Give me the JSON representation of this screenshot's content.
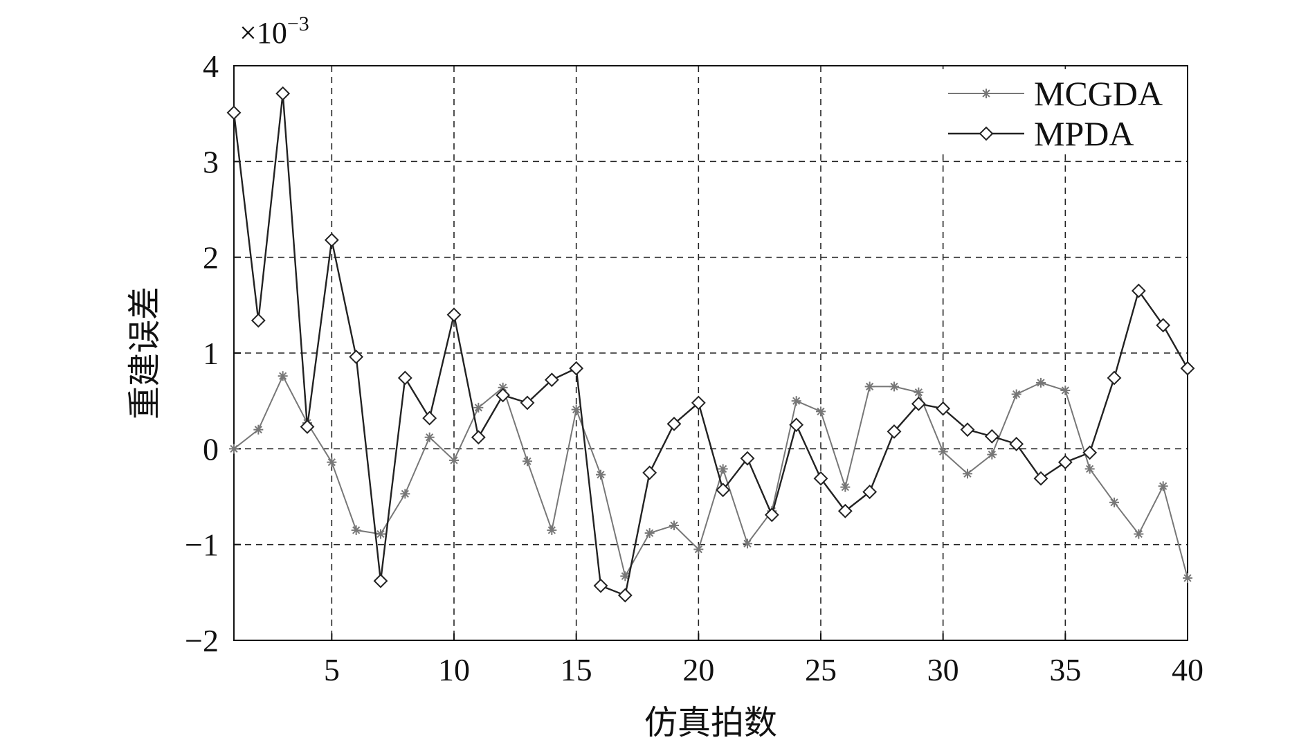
{
  "chart_data": {
    "type": "line",
    "xlabel": "仿真拍数",
    "ylabel": "重建误差",
    "y_multiplier": "×10",
    "y_multiplier_exp": "−3",
    "xlim": [
      1,
      40
    ],
    "ylim": [
      -2,
      4
    ],
    "x_ticks": [
      5,
      10,
      15,
      20,
      25,
      30,
      35,
      40
    ],
    "x_tick_labels": [
      "5",
      "10",
      "15",
      "20",
      "25",
      "30",
      "35",
      "40"
    ],
    "y_ticks": [
      -2,
      -1,
      0,
      1,
      2,
      3,
      4
    ],
    "y_tick_labels": [
      "−2",
      "−1",
      "0",
      "1",
      "2",
      "3",
      "4"
    ],
    "grid": true,
    "legend_position": "top-right",
    "x": [
      1,
      2,
      3,
      4,
      5,
      6,
      7,
      8,
      9,
      10,
      11,
      12,
      13,
      14,
      15,
      16,
      17,
      18,
      19,
      20,
      21,
      22,
      23,
      24,
      25,
      26,
      27,
      28,
      29,
      30,
      31,
      32,
      33,
      34,
      35,
      36,
      37,
      38,
      39,
      40
    ],
    "series": [
      {
        "name": "MCGDA",
        "marker": "star",
        "color": "#777777",
        "values": [
          0.0,
          0.2,
          0.76,
          0.27,
          -0.14,
          -0.85,
          -0.89,
          -0.47,
          0.12,
          -0.12,
          0.43,
          0.64,
          -0.13,
          -0.85,
          0.41,
          -0.27,
          -1.33,
          -0.88,
          -0.8,
          -1.05,
          -0.21,
          -0.99,
          -0.65,
          0.5,
          0.39,
          -0.4,
          0.65,
          0.65,
          0.59,
          -0.03,
          -0.26,
          -0.06,
          0.57,
          0.69,
          0.61,
          -0.21,
          -0.56,
          -0.89,
          -0.39,
          -1.35
        ]
      },
      {
        "name": "MPDA",
        "marker": "diamond",
        "color": "#222222",
        "values": [
          3.51,
          1.34,
          3.71,
          0.23,
          2.18,
          0.96,
          -1.38,
          0.74,
          0.32,
          1.4,
          0.12,
          0.56,
          0.48,
          0.72,
          0.84,
          -1.43,
          -1.53,
          -0.25,
          0.26,
          0.48,
          -0.43,
          -0.1,
          -0.69,
          0.25,
          -0.31,
          -0.65,
          -0.45,
          0.18,
          0.47,
          0.42,
          0.2,
          0.13,
          0.05,
          -0.31,
          -0.14,
          -0.04,
          0.74,
          1.65,
          1.29,
          0.84
        ]
      }
    ]
  }
}
